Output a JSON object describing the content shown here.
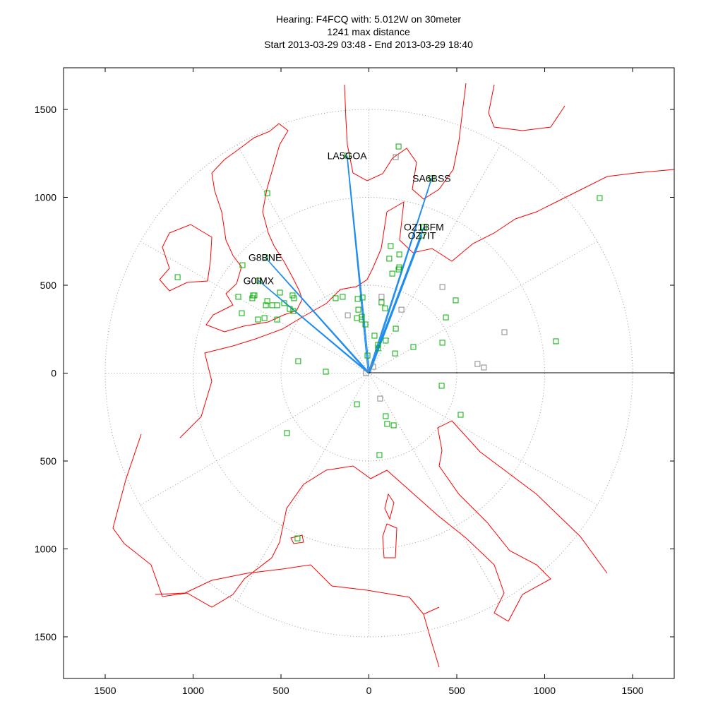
{
  "chart_data": {
    "type": "scatter",
    "title_lines": [
      "Hearing: F4FCQ with: 5.012W on 30meter",
      "1241 max distance",
      "Start 2013-03-29 03:48 - End 2013-03-29 18:40"
    ],
    "xlabel": "",
    "ylabel": "",
    "xlim": [
      -1737,
      1737
    ],
    "ylim": [
      -1737,
      1737
    ],
    "x_ticks": [
      -1500,
      -1000,
      -500,
      0,
      500,
      1000,
      1500
    ],
    "x_tick_labels": [
      "1500",
      "1000",
      "500",
      "0",
      "500",
      "1000",
      "1500"
    ],
    "y_ticks": [
      1500,
      1000,
      500,
      0,
      -500,
      -1000,
      -1500
    ],
    "y_tick_labels": [
      "1500",
      "1000",
      "500",
      "0",
      "500",
      "1000",
      "1500"
    ],
    "polar_grid": {
      "radii": [
        500,
        1000,
        1500
      ],
      "spoke_step_deg": 30,
      "style": "dotted"
    },
    "colors": {
      "map": "#ff0000",
      "heard": "#00b000",
      "other": "#888888",
      "path": "#1e8cf0",
      "grid": "#999999"
    },
    "points_heard": [
      [
        169,
        1289
      ],
      [
        -578,
        1024
      ],
      [
        -1088,
        546
      ],
      [
        -719,
        614
      ],
      [
        -590,
        659
      ],
      [
        -627,
        526
      ],
      [
        -743,
        434
      ],
      [
        -659,
        442
      ],
      [
        -651,
        442
      ],
      [
        -663,
        426
      ],
      [
        -723,
        341
      ],
      [
        -578,
        410
      ],
      [
        -506,
        458
      ],
      [
        -550,
        386
      ],
      [
        -522,
        386
      ],
      [
        -586,
        386
      ],
      [
        -631,
        305
      ],
      [
        -594,
        313
      ],
      [
        -434,
        442
      ],
      [
        -426,
        426
      ],
      [
        -482,
        398
      ],
      [
        -522,
        305
      ],
      [
        -450,
        365
      ],
      [
        -430,
        353
      ],
      [
        -402,
        68
      ],
      [
        -245,
        8
      ],
      [
        -466,
        -341
      ],
      [
        -406,
        -940
      ],
      [
        -149,
        434
      ],
      [
        -189,
        426
      ],
      [
        -64,
        422
      ],
      [
        -36,
        430
      ],
      [
        -60,
        361
      ],
      [
        -68,
        313
      ],
      [
        -40,
        321
      ],
      [
        -20,
        277
      ],
      [
        -40,
        305
      ],
      [
        72,
        402
      ],
      [
        92,
        369
      ],
      [
        32,
        213
      ],
      [
        153,
        253
      ],
      [
        96,
        185
      ],
      [
        52,
        141
      ],
      [
        52,
        161
      ],
      [
        149,
        112
      ],
      [
        -8,
        100
      ],
      [
        253,
        149
      ],
      [
        494,
        414
      ],
      [
        438,
        317
      ],
      [
        418,
        173
      ],
      [
        1064,
        181
      ],
      [
        1313,
        996
      ],
      [
        414,
        -72
      ],
      [
        522,
        -237
      ],
      [
        -68,
        -177
      ],
      [
        96,
        -245
      ],
      [
        104,
        -289
      ],
      [
        141,
        -297
      ],
      [
        60,
        -466
      ],
      [
        124,
        723
      ],
      [
        116,
        651
      ],
      [
        173,
        675
      ],
      [
        173,
        602
      ],
      [
        169,
        590
      ],
      [
        133,
        566
      ],
      [
        313,
        831
      ],
      [
        301,
        783
      ],
      [
        357,
        1108
      ],
      [
        -124,
        1237
      ]
    ],
    "points_other": [
      [
        153,
        1229
      ],
      [
        -120,
        329
      ],
      [
        72,
        434
      ],
      [
        185,
        361
      ],
      [
        418,
        490
      ],
      [
        618,
        52
      ],
      [
        654,
        32
      ],
      [
        771,
        233
      ],
      [
        64,
        -145
      ],
      [
        -16,
        0
      ],
      [
        24,
        36
      ]
    ],
    "stations": [
      {
        "label": "LA5GOA",
        "x": -124,
        "y": 1237
      },
      {
        "label": "SA6BSS",
        "x": 357,
        "y": 1108
      },
      {
        "label": "OZ1BFM",
        "x": 313,
        "y": 831
      },
      {
        "label": "OZ7IT",
        "x": 301,
        "y": 783
      },
      {
        "label": "G8BNE",
        "x": -590,
        "y": 659
      },
      {
        "label": "G0IMX",
        "x": -627,
        "y": 526
      }
    ]
  }
}
